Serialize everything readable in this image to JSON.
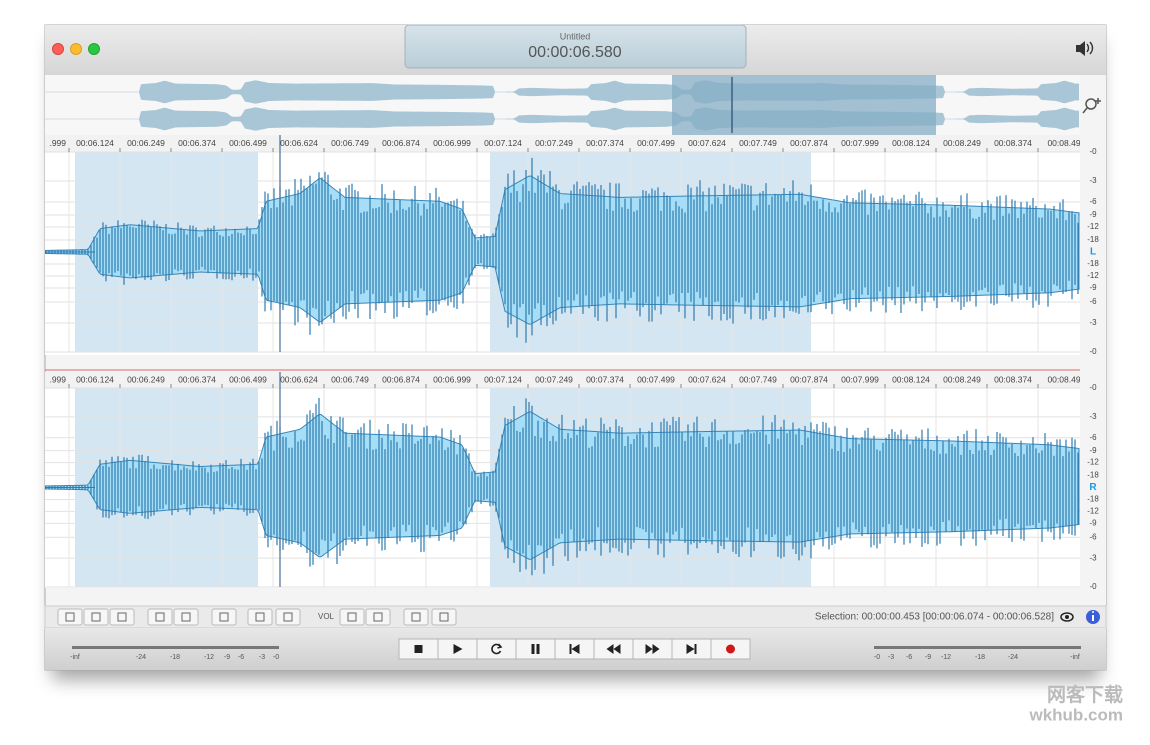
{
  "window": {
    "title": "Untitled",
    "time": "00:00:06.580"
  },
  "timeline": [
    ".999",
    "00:06.124",
    "00:06.249",
    "00:06.374",
    "00:06.499",
    "00:06.624",
    "00:06.749",
    "00:06.874",
    "00:06.999",
    "00:07.124",
    "00:07.249",
    "00:07.374",
    "00:07.499",
    "00:07.624",
    "00:07.749",
    "00:07.874",
    "00:07.999",
    "00:08.124",
    "00:08.249",
    "00:08.374",
    "00:08.49"
  ],
  "channels": [
    {
      "label": "L",
      "scale": [
        "-0",
        "-3",
        "-6",
        "-9",
        "-12",
        "-18",
        "-18",
        "-12",
        "-9",
        "-6",
        "-3",
        "-0"
      ]
    },
    {
      "label": "R",
      "scale": [
        "-0",
        "-3",
        "-6",
        "-9",
        "-12",
        "-18",
        "-18",
        "-12",
        "-9",
        "-6",
        "-3",
        "-0"
      ]
    }
  ],
  "toolbar": {
    "vol": "VOL"
  },
  "status": {
    "selection": "Selection: 00:00:00.453 [00:00:06.074 - 00:00:06.528]"
  },
  "meters": {
    "left": [
      "-inf",
      "-24",
      "-18",
      "-12",
      "-9",
      "-6",
      "-3",
      "-0"
    ],
    "right": [
      "-0",
      "-3",
      "-6",
      "-9",
      "-12",
      "-18",
      "-24",
      "-inf"
    ]
  },
  "watermark": {
    "cn": "网客下载",
    "url": "wkhub.com"
  }
}
